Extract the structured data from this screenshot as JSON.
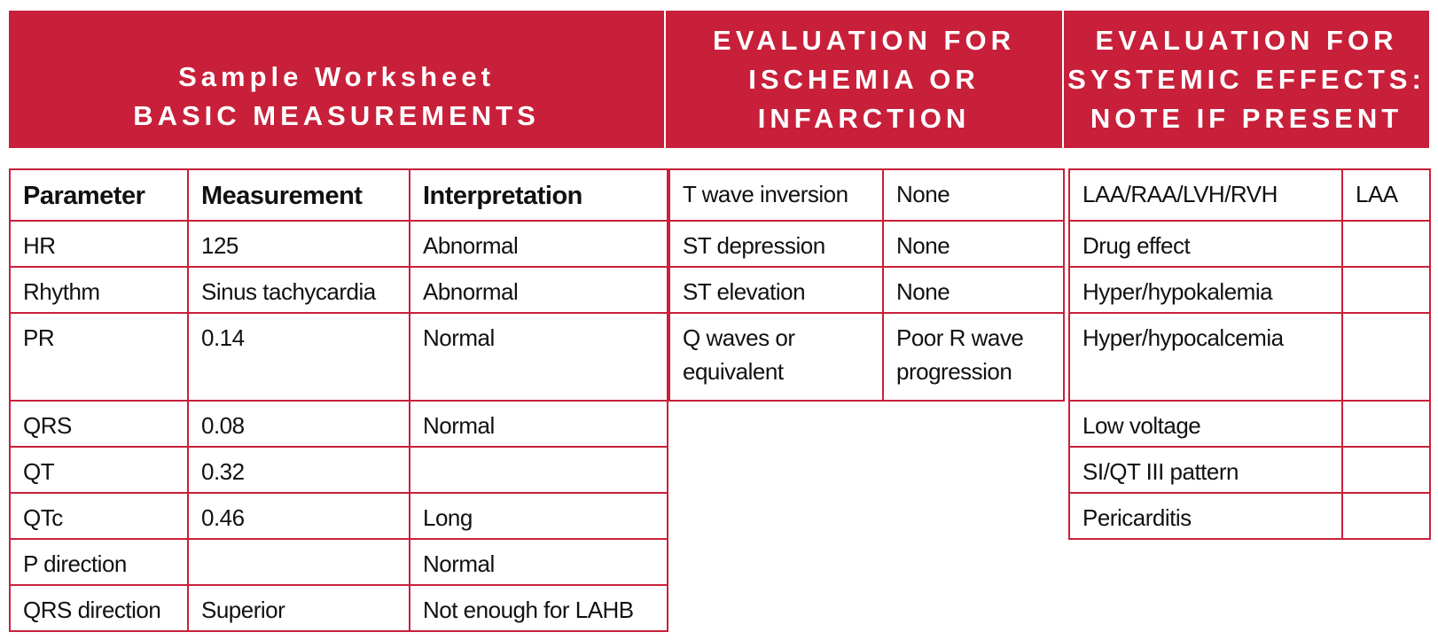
{
  "headers": [
    {
      "lines": [
        "Sample Worksheet",
        "BASIC MEASUREMENTS"
      ]
    },
    {
      "lines": [
        "EVALUATION FOR",
        "ISCHEMIA OR",
        "INFARCTION"
      ]
    },
    {
      "lines": [
        "EVALUATION FOR",
        "SYSTEMIC EFFECTS:",
        "NOTE IF PRESENT"
      ]
    }
  ],
  "basic": {
    "columns": [
      "Parameter",
      "Measurement",
      "Interpretation"
    ],
    "rows": [
      [
        "HR",
        "125",
        "Abnormal"
      ],
      [
        "Rhythm",
        "Sinus tachycardia",
        "Abnormal"
      ],
      [
        "PR",
        "0.14",
        "Normal"
      ],
      [
        "QRS",
        "0.08",
        "Normal"
      ],
      [
        "QT",
        "0.32",
        null
      ],
      [
        "QTc",
        "0.46",
        "Long"
      ],
      [
        "P direction",
        null,
        "Normal"
      ],
      [
        "QRS direction",
        "Superior",
        "Not enough for LAHB"
      ]
    ]
  },
  "ischemia": {
    "rows": [
      [
        "T wave inversion",
        "None"
      ],
      [
        "ST depression",
        "None"
      ],
      [
        "ST elevation",
        "None"
      ],
      [
        "Q waves or equivalent",
        "Poor R wave progression"
      ]
    ]
  },
  "systemic": {
    "rows": [
      [
        "LAA/RAA/LVH/RVH",
        "LAA"
      ],
      [
        "Drug effect",
        null
      ],
      [
        "Hyper/hypokalemia",
        null
      ],
      [
        "Hyper/hypocalcemia",
        null
      ],
      [
        "Low voltage",
        null
      ],
      [
        "SI/QT III pattern",
        null
      ],
      [
        "Pericarditis",
        null
      ]
    ]
  }
}
